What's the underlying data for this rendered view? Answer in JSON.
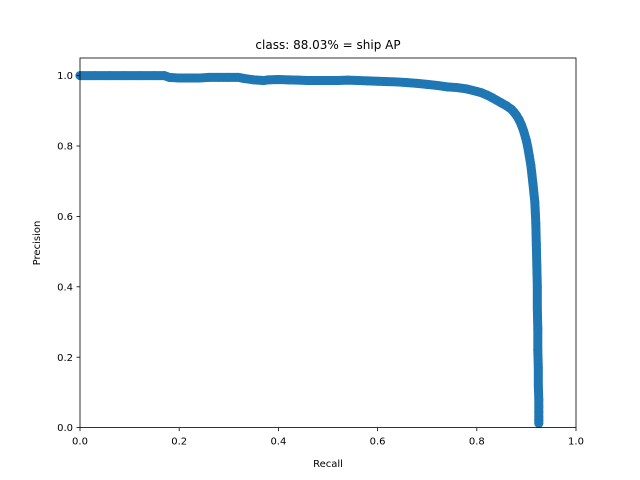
{
  "chart_data": {
    "type": "line",
    "title": "class: 88.03% = ship AP",
    "xlabel": "Recall",
    "ylabel": "Precision",
    "xlim": [
      0.0,
      1.0
    ],
    "ylim": [
      0.0,
      1.05
    ],
    "xticks": [
      0.0,
      0.2,
      0.4,
      0.6,
      0.8,
      1.0
    ],
    "yticks": [
      0.0,
      0.2,
      0.4,
      0.6,
      0.8,
      1.0
    ],
    "xtick_labels": [
      "0.0",
      "0.2",
      "0.4",
      "0.6",
      "0.8",
      "1.0"
    ],
    "ytick_labels": [
      "0.0",
      "0.2",
      "0.4",
      "0.6",
      "0.8",
      "1.0"
    ],
    "grid": false,
    "series": [
      {
        "color": "#1f77b4",
        "markers": true,
        "x": [
          0.0,
          0.03,
          0.06,
          0.09,
          0.12,
          0.15,
          0.17,
          0.18,
          0.2,
          0.22,
          0.24,
          0.26,
          0.28,
          0.3,
          0.32,
          0.33,
          0.35,
          0.37,
          0.38,
          0.4,
          0.42,
          0.44,
          0.46,
          0.48,
          0.5,
          0.52,
          0.54,
          0.56,
          0.58,
          0.6,
          0.62,
          0.64,
          0.66,
          0.68,
          0.7,
          0.72,
          0.74,
          0.76,
          0.78,
          0.8,
          0.81,
          0.82,
          0.83,
          0.84,
          0.85,
          0.86,
          0.87,
          0.875,
          0.88,
          0.885,
          0.89,
          0.895,
          0.9,
          0.903,
          0.906,
          0.909,
          0.911,
          0.913,
          0.915,
          0.917,
          0.918,
          0.919,
          0.92,
          0.921,
          0.922,
          0.922,
          0.923,
          0.923,
          0.924,
          0.924,
          0.925,
          0.925,
          0.925,
          0.925,
          0.925,
          0.925
        ],
        "y": [
          1.0,
          1.0,
          1.0,
          1.0,
          1.0,
          1.0,
          1.0,
          0.995,
          0.993,
          0.993,
          0.993,
          0.995,
          0.995,
          0.995,
          0.995,
          0.992,
          0.988,
          0.986,
          0.988,
          0.989,
          0.988,
          0.987,
          0.986,
          0.986,
          0.986,
          0.986,
          0.987,
          0.986,
          0.985,
          0.984,
          0.983,
          0.982,
          0.98,
          0.978,
          0.975,
          0.972,
          0.968,
          0.966,
          0.962,
          0.955,
          0.951,
          0.945,
          0.938,
          0.93,
          0.922,
          0.914,
          0.904,
          0.896,
          0.887,
          0.875,
          0.86,
          0.84,
          0.815,
          0.795,
          0.77,
          0.745,
          0.72,
          0.695,
          0.668,
          0.64,
          0.61,
          0.58,
          0.52,
          0.46,
          0.4,
          0.34,
          0.28,
          0.22,
          0.17,
          0.12,
          0.08,
          0.06,
          0.045,
          0.03,
          0.02,
          0.012
        ]
      }
    ]
  }
}
